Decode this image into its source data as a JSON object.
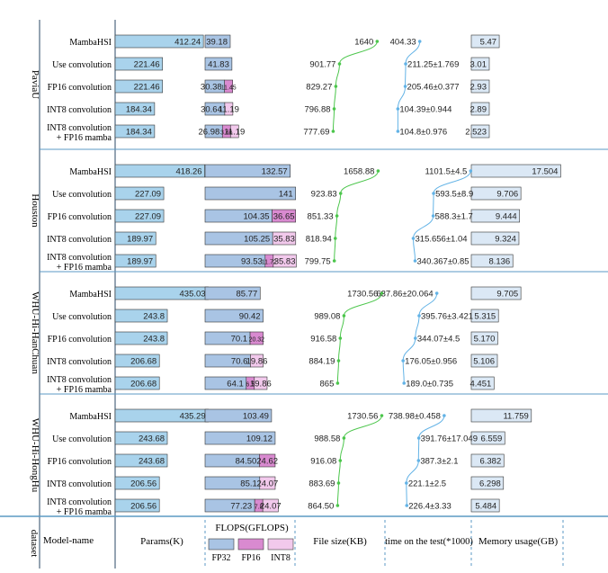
{
  "colors": {
    "params": "#a9d3ec",
    "fp32": "#a9c4e4",
    "fp16": "#d98ad0",
    "int8": "#f2c9ec",
    "memory": "#dbe8f5",
    "filesize_line": "#4cc64c",
    "time_line": "#63b3e6",
    "divider": "#5b9ac4"
  },
  "footer": {
    "dataset": "dataset",
    "model": "Model-name",
    "params": "Params(K)",
    "flops": "FLOPS(GFLOPS)",
    "fp32": "FP32",
    "fp16": "FP16",
    "int8": "INT8",
    "filesize": "File size(KB)",
    "time": "time on the test(*1000)",
    "memory": "Memory usage(GB)"
  },
  "chart_data": {
    "type": "table",
    "columns": [
      "Params(K)",
      "FLOPS(GFLOPS) FP32",
      "FLOPS(GFLOPS) FP16",
      "FLOPS(GFLOPS) INT8",
      "File size(KB)",
      "time on the test(*1000)",
      "Memory usage(GB)"
    ],
    "groups": [
      {
        "dataset": "PaviaU",
        "rows": [
          {
            "model": [
              "MambaHSI"
            ],
            "params": "412.24",
            "fp32": "39.18",
            "fp16": "",
            "int8": "",
            "filesize": "1640",
            "time": "404.33",
            "memory": "5.47",
            "params_v": 412.24,
            "fp32_v": 39.18,
            "fp16_v": 0,
            "int8_v": 0,
            "filesize_v": 1640,
            "time_v": 404.33,
            "memory_v": 5.47
          },
          {
            "model": [
              "Use convolution"
            ],
            "params": "221.46",
            "fp32": "41.83",
            "fp16": "",
            "int8": "",
            "filesize": "901.77",
            "time": "211.25±1.769",
            "memory": "3.01",
            "params_v": 221.46,
            "fp32_v": 41.83,
            "fp16_v": 0,
            "int8_v": 0,
            "filesize_v": 901.77,
            "time_v": 211.25,
            "memory_v": 3.01
          },
          {
            "model": [
              "FP16 convolution"
            ],
            "params": "221.46",
            "fp32": "30.38",
            "fp16": "11.45",
            "int8": "",
            "filesize": "829.27",
            "time": "205.46±0.377",
            "memory": "2.93",
            "params_v": 221.46,
            "fp32_v": 30.38,
            "fp16_v": 11.45,
            "int8_v": 0,
            "filesize_v": 829.27,
            "time_v": 205.46,
            "memory_v": 2.93
          },
          {
            "model": [
              "INT8 convolution"
            ],
            "params": "184.34",
            "fp32": "30.64",
            "fp16": "",
            "int8": "11.19",
            "filesize": "796.88",
            "time": "104.39±0.944",
            "memory": "2.89",
            "params_v": 184.34,
            "fp32_v": 30.64,
            "fp16_v": 0,
            "int8_v": 11.19,
            "filesize_v": 796.88,
            "time_v": 104.39,
            "memory_v": 2.89
          },
          {
            "model": [
              "INT8 convolution",
              "+ FP16 mamba"
            ],
            "params": "184.34",
            "fp32": "26.98",
            "fp16": "3.66",
            "int8": "11.19",
            "filesize": "777.69",
            "time": "104.8±0.976",
            "memory": "2.523",
            "params_v": 184.34,
            "fp32_v": 26.98,
            "fp16_v": 3.66,
            "int8_v": 11.19,
            "filesize_v": 777.69,
            "time_v": 104.8,
            "memory_v": 2.523
          }
        ]
      },
      {
        "dataset": "Houston",
        "rows": [
          {
            "model": [
              "MambaHSI"
            ],
            "params": "418.26",
            "fp32": "132.57",
            "fp16": "",
            "int8": "",
            "filesize": "1658.88",
            "time": "1101.5±4.5",
            "memory": "17.504",
            "params_v": 418.26,
            "fp32_v": 132.57,
            "fp16_v": 0,
            "int8_v": 0,
            "filesize_v": 1658.88,
            "time_v": 1101.5,
            "memory_v": 17.504
          },
          {
            "model": [
              "Use convolution"
            ],
            "params": "227.09",
            "fp32": "141",
            "fp16": "",
            "int8": "",
            "filesize": "923.83",
            "time": "593.5±8.9",
            "memory": "9.706",
            "params_v": 227.09,
            "fp32_v": 141,
            "fp16_v": 0,
            "int8_v": 0,
            "filesize_v": 923.83,
            "time_v": 593.5,
            "memory_v": 9.706
          },
          {
            "model": [
              "FP16 convolution"
            ],
            "params": "227.09",
            "fp32": "104.35",
            "fp16": "36.65",
            "int8": "",
            "filesize": "851.33",
            "time": "588.3±1.7",
            "memory": "9.444",
            "params_v": 227.09,
            "fp32_v": 104.35,
            "fp16_v": 36.65,
            "int8_v": 0,
            "filesize_v": 851.33,
            "time_v": 588.3,
            "memory_v": 9.444
          },
          {
            "model": [
              "INT8 convolution"
            ],
            "params": "189.97",
            "fp32": "105.25",
            "fp16": "",
            "int8": "35.83",
            "filesize": "818.94",
            "time": "315.656±1.04",
            "memory": "9.324",
            "params_v": 189.97,
            "fp32_v": 105.25,
            "fp16_v": 0,
            "int8_v": 35.83,
            "filesize_v": 818.94,
            "time_v": 315.656,
            "memory_v": 9.324
          },
          {
            "model": [
              "INT8 convolution",
              "+ FP16 mamba"
            ],
            "params": "189.97",
            "fp32": "93.53",
            "fp16": "11.72",
            "int8": "35.83",
            "filesize": "799.75",
            "time": "340.367±0.85",
            "memory": "8.136",
            "params_v": 189.97,
            "fp32_v": 93.53,
            "fp16_v": 11.72,
            "int8_v": 35.83,
            "filesize_v": 799.75,
            "time_v": 340.367,
            "memory_v": 8.136
          }
        ]
      },
      {
        "dataset": "WHU-Hi-HanChuan",
        "rows": [
          {
            "model": [
              "MambaHSI"
            ],
            "params": "435.03",
            "fp32": "85.77",
            "fp16": "",
            "int8": "",
            "filesize": "1730.56",
            "time": "637.86±20.064",
            "memory": "9.705",
            "params_v": 435.03,
            "fp32_v": 85.77,
            "fp16_v": 0,
            "int8_v": 0,
            "filesize_v": 1730.56,
            "time_v": 637.86,
            "memory_v": 9.705
          },
          {
            "model": [
              "Use convolution"
            ],
            "params": "243.8",
            "fp32": "90.42",
            "fp16": "",
            "int8": "",
            "filesize": "989.08",
            "time": "395.76±3.421",
            "memory": "5.315",
            "params_v": 243.8,
            "fp32_v": 90.42,
            "fp16_v": 0,
            "int8_v": 0,
            "filesize_v": 989.08,
            "time_v": 395.76,
            "memory_v": 5.315
          },
          {
            "model": [
              "FP16 convolution"
            ],
            "params": "243.8",
            "fp32": "70.1",
            "fp16": "20.32",
            "int8": "",
            "filesize": "916.58",
            "time": "344.07±4.5",
            "memory": "5.170",
            "params_v": 243.8,
            "fp32_v": 70.1,
            "fp16_v": 20.32,
            "int8_v": 0,
            "filesize_v": 916.58,
            "time_v": 344.07,
            "memory_v": 5.17
          },
          {
            "model": [
              "INT8 convolution"
            ],
            "params": "206.68",
            "fp32": "70.6",
            "fp16": "",
            "int8": "19.86",
            "filesize": "884.19",
            "time": "176.05±0.956",
            "memory": "5.106",
            "params_v": 206.68,
            "fp32_v": 70.6,
            "fp16_v": 0,
            "int8_v": 19.86,
            "filesize_v": 884.19,
            "time_v": 176.05,
            "memory_v": 5.106
          },
          {
            "model": [
              "INT8 convolution",
              "+ FP16 mamba"
            ],
            "params": "206.68",
            "fp32": "64.1",
            "fp16": "6.5",
            "int8": "19.86",
            "filesize": "865",
            "time": "189.0±0.735",
            "memory": "4.451",
            "params_v": 206.68,
            "fp32_v": 64.1,
            "fp16_v": 6.5,
            "int8_v": 19.86,
            "filesize_v": 865,
            "time_v": 189.0,
            "memory_v": 4.451
          }
        ]
      },
      {
        "dataset": "WHU-Hi-HongHu",
        "rows": [
          {
            "model": [
              "MambaHSI"
            ],
            "params": "435.29",
            "fp32": "103.49",
            "fp16": "",
            "int8": "",
            "filesize": "1730.56",
            "time": "738.98±0.458",
            "memory": "11.759",
            "params_v": 435.29,
            "fp32_v": 103.49,
            "fp16_v": 0,
            "int8_v": 0,
            "filesize_v": 1730.56,
            "time_v": 738.98,
            "memory_v": 11.759
          },
          {
            "model": [
              "Use convolution"
            ],
            "params": "243.68",
            "fp32": "109.12",
            "fp16": "",
            "int8": "",
            "filesize": "988.58",
            "time": "391.76±17.049",
            "memory": "6.559",
            "params_v": 243.68,
            "fp32_v": 109.12,
            "fp16_v": 0,
            "int8_v": 0,
            "filesize_v": 988.58,
            "time_v": 391.76,
            "memory_v": 6.559
          },
          {
            "model": [
              "FP16 convolution"
            ],
            "params": "243.68",
            "fp32": "84.50",
            "fp16": "24.62",
            "int8": "",
            "filesize": "916.08",
            "time": "387.3±2.1",
            "memory": "6.382",
            "params_v": 243.68,
            "fp32_v": 84.5,
            "fp16_v": 24.62,
            "int8_v": 0,
            "filesize_v": 916.08,
            "time_v": 387.3,
            "memory_v": 6.382
          },
          {
            "model": [
              "INT8 convolution"
            ],
            "params": "206.56",
            "fp32": "85.1",
            "fp16": "",
            "int8": "24.07",
            "filesize": "883.69",
            "time": "221.1±2.5",
            "memory": "6.298",
            "params_v": 206.56,
            "fp32_v": 85.1,
            "fp16_v": 0,
            "int8_v": 24.07,
            "filesize_v": 883.69,
            "time_v": 221.1,
            "memory_v": 6.298
          },
          {
            "model": [
              "INT8 convolution",
              "+ FP16 mamba"
            ],
            "params": "206.56",
            "fp32": "77.23",
            "fp16": "7.8",
            "int8": "24.07",
            "filesize": "864.50",
            "time": "226.4±3.33",
            "memory": "5.484",
            "params_v": 206.56,
            "fp32_v": 77.23,
            "fp16_v": 7.8,
            "int8_v": 24.07,
            "filesize_v": 864.5,
            "time_v": 226.4,
            "memory_v": 5.484
          }
        ]
      }
    ]
  }
}
